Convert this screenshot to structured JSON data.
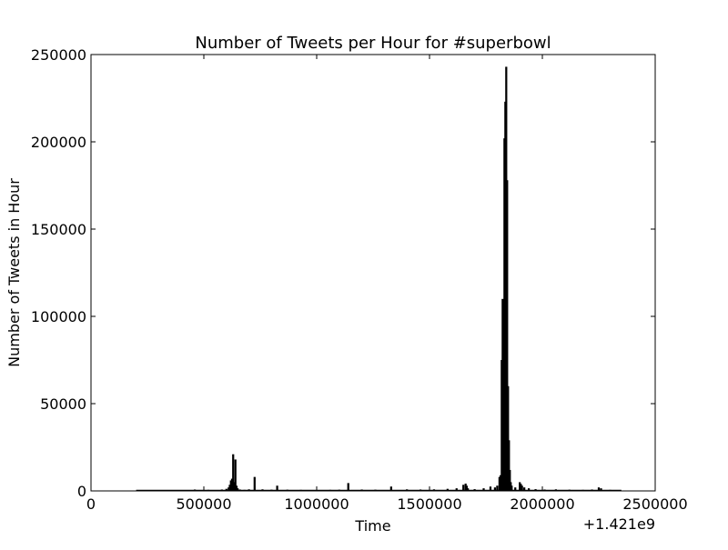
{
  "chart_data": {
    "type": "bar",
    "title": "Number of Tweets per Hour for #superbowl",
    "xlabel": "Time",
    "ylabel": "Number of Tweets in Hour",
    "x_offset_label": "+1.421e9",
    "xlim": [
      0,
      2500000
    ],
    "ylim": [
      0,
      250000
    ],
    "grid": false,
    "legend": "none",
    "bar_color": "#000000",
    "bar_width": 3600,
    "x_ticks": [
      0,
      500000,
      1000000,
      1500000,
      2000000,
      2500000
    ],
    "x_tick_labels": [
      "0",
      "500000",
      "1000000",
      "1500000",
      "2000000",
      "2500000"
    ],
    "y_ticks": [
      0,
      50000,
      100000,
      150000,
      200000,
      250000
    ],
    "y_tick_labels": [
      "0",
      "50000",
      "100000",
      "150000",
      "200000",
      "250000"
    ],
    "series": [
      {
        "x": [
          230000,
          300000,
          380000,
          460000,
          520000,
          580000,
          600000,
          610000,
          615000,
          620000,
          625000,
          630000,
          635000,
          640000,
          645000,
          650000,
          660000,
          680000,
          700000,
          725000,
          760000,
          800000,
          825000,
          870000,
          930000,
          1000000,
          1060000,
          1100000,
          1140000,
          1200000,
          1260000,
          1330000,
          1400000,
          1460000,
          1520000,
          1580000,
          1620000,
          1650000,
          1660000,
          1665000,
          1670000,
          1700000,
          1740000,
          1770000,
          1790000,
          1800000,
          1810000,
          1815000,
          1820000,
          1824000,
          1828000,
          1832000,
          1836000,
          1840000,
          1844000,
          1848000,
          1852000,
          1856000,
          1860000,
          1864000,
          1880000,
          1900000,
          1905000,
          1910000,
          1920000,
          1940000,
          1970000,
          2010000,
          2060000,
          2120000,
          2180000,
          2220000,
          2250000,
          2260000,
          2300000,
          2340000
        ],
        "values": [
          300,
          500,
          400,
          800,
          600,
          800,
          1200,
          2000,
          3500,
          6000,
          7000,
          21000,
          5000,
          18000,
          3000,
          1500,
          800,
          600,
          900,
          8000,
          900,
          700,
          3000,
          700,
          600,
          500,
          600,
          700,
          4500,
          800,
          700,
          2500,
          900,
          800,
          900,
          1200,
          1500,
          3500,
          4200,
          3000,
          1500,
          1000,
          1500,
          2500,
          2000,
          3000,
          8000,
          9000,
          75000,
          110000,
          84000,
          202000,
          223000,
          243000,
          178000,
          60000,
          29000,
          12000,
          5000,
          3000,
          2000,
          5000,
          4000,
          3000,
          2000,
          1500,
          1000,
          800,
          900,
          700,
          600,
          800,
          2000,
          1500,
          600,
          400
        ]
      }
    ]
  }
}
